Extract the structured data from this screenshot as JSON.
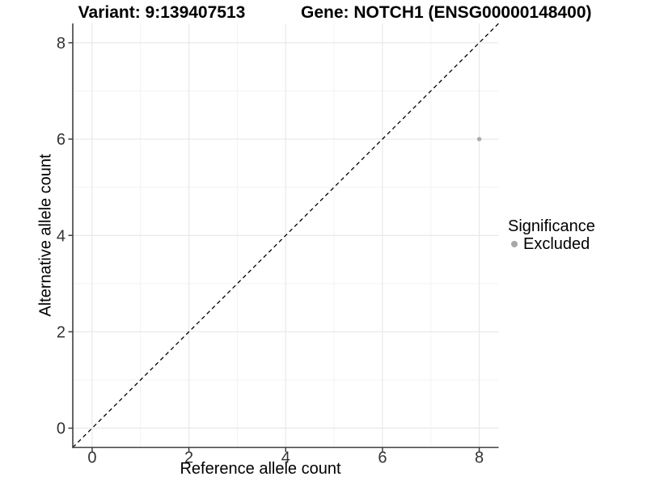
{
  "chart_data": {
    "type": "scatter",
    "title_left": "Variant: 9:139407513",
    "title_right": "Gene: NOTCH1 (ENSG00000148400)",
    "x_axis": {
      "label": "Reference allele count",
      "ticks": [
        0,
        2,
        4,
        6,
        8
      ],
      "minor_ticks": [
        1,
        3,
        5,
        7
      ],
      "range": [
        -0.4,
        8.4
      ]
    },
    "y_axis": {
      "label": "Alternative allele count",
      "ticks": [
        0,
        2,
        4,
        6,
        8
      ],
      "minor_ticks": [
        1,
        3,
        5,
        7
      ],
      "range": [
        -0.4,
        8.4
      ]
    },
    "points": [
      {
        "x": 8,
        "y": 6,
        "significance": "Excluded"
      }
    ],
    "reference_line": {
      "equation": "y=x",
      "style": "dashed",
      "from": -0.4,
      "to": 8.4
    },
    "legend": {
      "position": "right",
      "title": "Significance",
      "items": [
        {
          "label": "Excluded",
          "color": "#a8a8a8"
        }
      ]
    },
    "colors": {
      "background": "#ffffff",
      "grid_major": "#e8e8e8",
      "grid_minor": "#f3f3f3",
      "axis": "#404040",
      "tick_label": "#333333",
      "reference_line": "#000000",
      "point": "#ababab",
      "text": "#000000"
    }
  }
}
